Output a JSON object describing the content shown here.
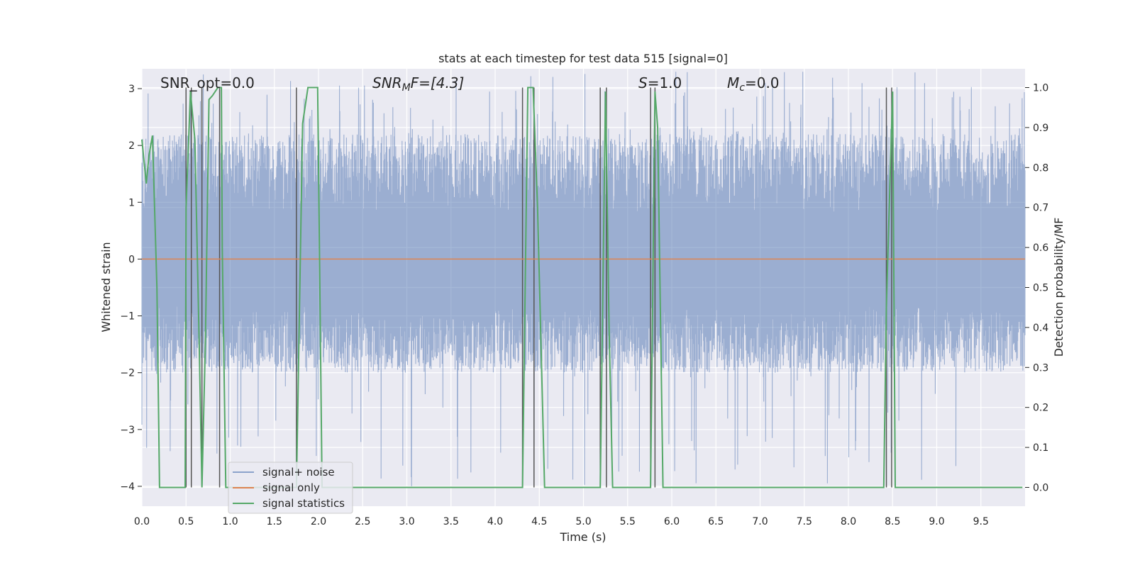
{
  "chart_data": {
    "type": "line",
    "title": "stats at each timestep for test data 515 [signal=0]",
    "xlabel": "Time (s)",
    "ylabel": "Whitened strain",
    "y2label": "Detection probability/MF",
    "xlim": [
      0.0,
      10.0
    ],
    "ylim": [
      -4.35,
      3.35
    ],
    "y2lim": [
      -0.047,
      1.047
    ],
    "x_ticks": [
      "0.0",
      "0.5",
      "1.0",
      "1.5",
      "2.0",
      "2.5",
      "3.0",
      "3.5",
      "4.0",
      "4.5",
      "5.0",
      "5.5",
      "6.0",
      "6.5",
      "7.0",
      "7.5",
      "8.0",
      "8.5",
      "9.0",
      "9.5"
    ],
    "x_tick_values": [
      0.0,
      0.5,
      1.0,
      1.5,
      2.0,
      2.5,
      3.0,
      3.5,
      4.0,
      4.5,
      5.0,
      5.5,
      6.0,
      6.5,
      7.0,
      7.5,
      8.0,
      8.5,
      9.0,
      9.5
    ],
    "y_ticks": [
      "3",
      "2",
      "1",
      "0",
      "−1",
      "−2",
      "−3",
      "−4"
    ],
    "y_tick_values": [
      3,
      2,
      1,
      0,
      -1,
      -2,
      -3,
      -4
    ],
    "y2_ticks": [
      "1.0",
      "0.9",
      "0.8",
      "0.7",
      "0.6",
      "0.5",
      "0.4",
      "0.3",
      "0.2",
      "0.1",
      "0.0"
    ],
    "y2_tick_values": [
      1.0,
      0.9,
      0.8,
      0.7,
      0.6,
      0.5,
      0.4,
      0.3,
      0.2,
      0.1,
      0.0
    ],
    "annotations": {
      "snr_opt": "SNR_opt=0.0",
      "snr_mf_base": "SNR",
      "snr_mf_sub": "M",
      "snr_mf_rest": "F=[4.3]",
      "s_label": "S",
      "s_value": "=1.0",
      "mc_base": "M",
      "mc_sub": "c",
      "mc_value": "=0.0"
    },
    "grid": true,
    "legend_position": "lower-left",
    "series": [
      {
        "name": "signal+ noise",
        "color": "#4c72b0",
        "noise_envelope": {
          "typical_min": -2.0,
          "typical_max": 2.2,
          "peak_max": 3.3,
          "peak_min": -4.0
        }
      },
      {
        "name": "signal only",
        "color": "#dd8452",
        "x": [
          0.0,
          10.0
        ],
        "y": [
          0.0,
          0.0
        ]
      },
      {
        "name": "signal statistics",
        "color": "#55a868",
        "axis": "right",
        "x": [
          0.0,
          0.05,
          0.08,
          0.12,
          0.17,
          0.2,
          0.49,
          0.5,
          0.55,
          0.6,
          0.65,
          0.68,
          0.72,
          0.76,
          0.8,
          0.86,
          0.9,
          0.91,
          0.95,
          1.75,
          1.82,
          1.88,
          1.99,
          2.04,
          4.31,
          4.37,
          4.43,
          4.48,
          4.56,
          5.19,
          5.25,
          5.29,
          5.33,
          5.76,
          5.79,
          5.81,
          5.84,
          5.9,
          6.9,
          8.4,
          8.43,
          8.5,
          8.53,
          9.97
        ],
        "y": [
          0.87,
          0.76,
          0.83,
          0.88,
          0.5,
          0.0,
          0.0,
          0.7,
          0.99,
          0.87,
          0.35,
          0.0,
          0.37,
          0.97,
          0.98,
          1.0,
          1.0,
          0.6,
          0.0,
          0.0,
          0.91,
          1.0,
          1.0,
          0.0,
          0.0,
          1.0,
          1.0,
          0.7,
          0.0,
          0.0,
          0.99,
          0.4,
          0.0,
          0.0,
          0.6,
          0.99,
          0.9,
          0.0,
          0.0,
          0.0,
          0.45,
          0.99,
          0.0,
          0.0
        ]
      }
    ],
    "vertical_markers_x": [
      0.5,
      0.56,
      0.68,
      0.88,
      1.75,
      4.31,
      4.44,
      5.19,
      5.26,
      5.76,
      5.81,
      8.43,
      8.49
    ]
  }
}
